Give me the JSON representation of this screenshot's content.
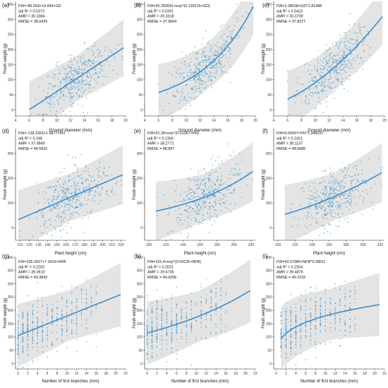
{
  "figure": {
    "background": "#ffffff",
    "point_color": "#3a8fc4",
    "fit_color": "#3d8fd1",
    "band_color": "#e4e4e4"
  },
  "chart_data": [
    {
      "panel": "(a)",
      "type": "scatter",
      "xlabel": "Ground diameter (mm)",
      "ylabel": "Fresh weight (g)",
      "xlim": [
        4,
        20
      ],
      "ylim": [
        -20,
        360
      ],
      "xticks": [
        4,
        6,
        8,
        10,
        12,
        14,
        16,
        18,
        20
      ],
      "yticks": [
        0,
        50,
        100,
        150,
        200,
        250,
        300,
        350
      ],
      "annotations": [
        "FW=-89.254+14.994×GD",
        "adj R² = 0.5373",
        "AMR = 30.3384",
        "RMSE = 38.0425"
      ],
      "model": "linear",
      "params": [
        -89.254,
        14.994
      ],
      "fit_x": [
        6,
        19.7
      ],
      "band": 75,
      "points_x": [
        6,
        19.5
      ],
      "n_points": 430
    },
    {
      "panel": "(b)",
      "type": "scatter",
      "xlabel": "Ground diameter (mm)",
      "ylabel": "Fresh weight (g)",
      "xlim": [
        4,
        20
      ],
      "ylim": [
        -20,
        360
      ],
      "xticks": [
        4,
        6,
        8,
        10,
        12,
        14,
        16,
        18,
        20
      ],
      "yticks": [
        0,
        50,
        100,
        150,
        200,
        250,
        300,
        350
      ],
      "annotations": [
        "FW=26.392691×exp^(0.130215×GD)",
        "adj R² = 0.5391",
        "AMR = 30.3318",
        "RMSE = 37.9664"
      ],
      "model": "exp",
      "params": [
        26.392691,
        0.130215
      ],
      "fit_x": [
        6,
        19.7
      ],
      "band": 75,
      "points_x": [
        6,
        19.5
      ],
      "n_points": 430
    },
    {
      "panel": "(c)",
      "type": "scatter",
      "xlabel": "Ground diameter (mm)",
      "ylabel": "Fresh weight (g)",
      "xlim": [
        4,
        20
      ],
      "ylim": [
        -20,
        360
      ],
      "xticks": [
        4,
        6,
        8,
        10,
        12,
        14,
        16,
        18,
        20
      ],
      "yticks": [
        0,
        50,
        100,
        150,
        200,
        250,
        300,
        350
      ],
      "annotations": [
        "FW=1.38538×GD^1.81498",
        "adj R² = 0.5423",
        "AMR = 30.0709",
        "RMSE = 37.8377"
      ],
      "model": "power",
      "params": [
        1.38538,
        1.81498
      ],
      "fit_x": [
        6,
        19.7
      ],
      "band": 75,
      "points_x": [
        6,
        19.5
      ],
      "n_points": 430
    },
    {
      "panel": "(d)",
      "type": "scatter",
      "xlabel": "Plant height (cm)",
      "ylabel": "Fresh weight (g)",
      "xlim": [
        105,
        225
      ],
      "ylim": [
        -50,
        400
      ],
      "xticks": [
        110,
        120,
        130,
        140,
        150,
        160,
        170,
        180,
        190,
        200,
        210,
        220
      ],
      "yticks": [
        0,
        100,
        200,
        300
      ],
      "annotations": [
        "FW=-138.2263+1.5877×PH",
        "adj R² = 0.246",
        "AMR = 37.9849",
        "RMSE = 48.5632"
      ],
      "model": "linear",
      "params": [
        -138.2263,
        1.5877
      ],
      "fit_x": [
        108,
        222
      ],
      "band": 95,
      "points_x": [
        110,
        222
      ],
      "n_points": 430
    },
    {
      "panel": "(e)",
      "type": "scatter",
      "xlabel": "Plant height (cm)",
      "ylabel": "Fresh weight (g)",
      "xlim": [
        95,
        225
      ],
      "ylim": [
        -50,
        400
      ],
      "xticks": [
        100,
        120,
        140,
        160,
        180,
        200,
        220
      ],
      "yticks": [
        0,
        100,
        200,
        300
      ],
      "annotations": [
        "FW=21.28×exp^(0.01067×PH)",
        "adj R² = 0.2356",
        "AMR = 38.2771",
        "RMSE = 48.897"
      ],
      "model": "exp",
      "params": [
        21.28,
        0.01067
      ],
      "fit_x": [
        108,
        222
      ],
      "band": 95,
      "points_x": [
        110,
        222
      ],
      "n_points": 430
    },
    {
      "panel": "(f)",
      "type": "scatter",
      "xlabel": "Plant height (cm)",
      "ylabel": "Fresh weight (g)",
      "xlim": [
        95,
        225
      ],
      "ylim": [
        -50,
        400
      ],
      "xticks": [
        100,
        120,
        140,
        160,
        180,
        200,
        220
      ],
      "yticks": [
        0,
        100,
        200,
        300
      ],
      "annotations": [
        "FW=0.00597×PH^1.948337",
        "adj R² = 0.2421",
        "AMR = 38.1137",
        "RMSE = 48.6685"
      ],
      "model": "power",
      "params": [
        0.00597,
        1.948337
      ],
      "fit_x": [
        108,
        222
      ],
      "band": 95,
      "points_x": [
        110,
        222
      ],
      "n_points": 430
    },
    {
      "panel": "(g)",
      "type": "scatter",
      "xlabel": "Number of first branches (mm)",
      "ylabel": "Fresh weight (g)",
      "xlim": [
        -0.5,
        22
      ],
      "ylim": [
        -20,
        400
      ],
      "xticks": [
        0,
        2,
        4,
        6,
        8,
        10,
        12,
        14,
        16,
        18,
        20,
        22
      ],
      "yticks": [
        0,
        50,
        100,
        150,
        200,
        250,
        300,
        350,
        400
      ],
      "annotations": [
        "FW=105.2827+7.3416×NFB",
        "adj R² = 0.2203",
        "AMR = 39.3610",
        "RMSE = 49.3842"
      ],
      "model": "linear",
      "params": [
        105.2827,
        7.3416
      ],
      "fit_x": [
        0,
        21
      ],
      "band": 95,
      "points_x": [
        0,
        16
      ],
      "n_points": 430,
      "discrete": true
    },
    {
      "panel": "(h)",
      "type": "scatter",
      "xlabel": "Number of first branches (mm)",
      "ylabel": "Fresh weight (g)",
      "xlim": [
        -0.5,
        22
      ],
      "ylim": [
        -20,
        400
      ],
      "xticks": [
        0,
        2,
        4,
        6,
        8,
        10,
        12,
        14,
        16,
        18,
        20,
        22
      ],
      "yticks": [
        0,
        50,
        100,
        150,
        200,
        250,
        300,
        350,
        400
      ],
      "annotations": [
        "FW=115.4×exp^(0.04135×NFB)",
        "adj R² = 0.2031",
        "AMR = 39.6735",
        "RMSE = 49.9256"
      ],
      "model": "exp",
      "params": [
        115.4,
        0.04135
      ],
      "fit_x": [
        0,
        21
      ],
      "band": 95,
      "points_x": [
        0,
        16
      ],
      "n_points": 430,
      "discrete": true
    },
    {
      "panel": "(i)",
      "type": "scatter",
      "xlabel": "Number of first branches (mm)",
      "ylabel": "Fresh weight (g)",
      "xlim": [
        -0.5,
        22
      ],
      "ylim": [
        -20,
        400
      ],
      "xticks": [
        0,
        2,
        4,
        6,
        8,
        10,
        12,
        14,
        16,
        18,
        20,
        22
      ],
      "yticks": [
        0,
        50,
        100,
        150,
        200,
        250,
        300,
        350,
        400
      ],
      "annotations": [
        "FW=93.07986×NFB^0.28511",
        "adj R² = 0.2254",
        "AMR = 39.4876",
        "RMSE = 49.2232"
      ],
      "model": "power",
      "params": [
        93.07986,
        0.28511
      ],
      "fit_x": [
        1,
        21
      ],
      "band": 95,
      "points_x": [
        1,
        16
      ],
      "n_points": 430,
      "discrete": true
    }
  ]
}
